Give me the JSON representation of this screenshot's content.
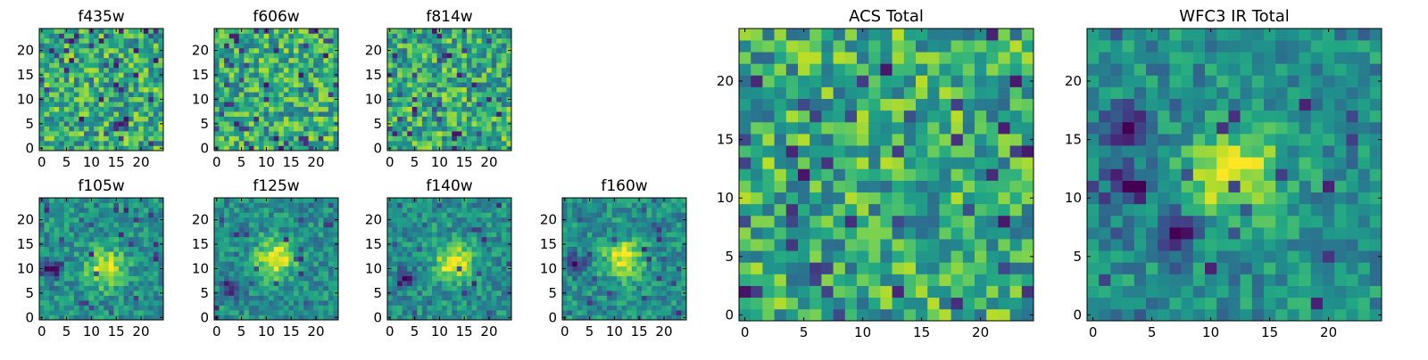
{
  "chart_data": [
    {
      "type": "heatmap",
      "title": "f435w",
      "xticks": [
        0,
        5,
        10,
        15,
        20
      ],
      "yticks": [
        0,
        5,
        10,
        15,
        20
      ],
      "grid_size": 25,
      "colormap": "viridis",
      "description_values": {
        "pattern": "noise",
        "peak": [],
        "dark": []
      }
    },
    {
      "type": "heatmap",
      "title": "f606w",
      "xticks": [
        0,
        5,
        10,
        15,
        20
      ],
      "yticks": [
        0,
        5,
        10,
        15,
        20
      ],
      "grid_size": 25,
      "colormap": "viridis",
      "description_values": {
        "pattern": "noise",
        "peak": [],
        "dark": []
      }
    },
    {
      "type": "heatmap",
      "title": "f814w",
      "xticks": [
        0,
        5,
        10,
        15,
        20
      ],
      "yticks": [
        0,
        5,
        10,
        15,
        20
      ],
      "grid_size": 25,
      "colormap": "viridis",
      "description_values": {
        "pattern": "noise",
        "peak": [],
        "dark": []
      }
    },
    {
      "type": "heatmap",
      "title": "f105w",
      "xticks": [
        0,
        5,
        10,
        15,
        20
      ],
      "yticks": [
        0,
        5,
        10,
        15,
        20
      ],
      "grid_size": 25,
      "colormap": "viridis",
      "description_values": {
        "pattern": "source",
        "peak": [
          13,
          10
        ],
        "dark": [
          [
            2,
            10
          ]
        ]
      }
    },
    {
      "type": "heatmap",
      "title": "f125w",
      "xticks": [
        0,
        5,
        10,
        15,
        20
      ],
      "yticks": [
        0,
        5,
        10,
        15,
        20
      ],
      "grid_size": 25,
      "colormap": "viridis",
      "description_values": {
        "pattern": "source",
        "peak": [
          12,
          12
        ],
        "dark": [
          [
            3,
            6
          ]
        ]
      }
    },
    {
      "type": "heatmap",
      "title": "f140w",
      "xticks": [
        0,
        5,
        10,
        15,
        20
      ],
      "yticks": [
        0,
        5,
        10,
        15,
        20
      ],
      "grid_size": 25,
      "colormap": "viridis",
      "description_values": {
        "pattern": "source",
        "peak": [
          13,
          11
        ],
        "dark": [
          [
            3,
            8
          ]
        ]
      }
    },
    {
      "type": "heatmap",
      "title": "f160w",
      "xticks": [
        0,
        5,
        10,
        15,
        20
      ],
      "yticks": [
        0,
        5,
        10,
        15,
        20
      ],
      "grid_size": 25,
      "colormap": "viridis",
      "description_values": {
        "pattern": "source",
        "peak": [
          12,
          12
        ],
        "dark": [
          [
            2,
            11
          ]
        ]
      }
    },
    {
      "type": "heatmap",
      "title": "ACS Total",
      "xticks": [
        0,
        5,
        10,
        15,
        20
      ],
      "yticks": [
        0,
        5,
        10,
        15,
        20
      ],
      "grid_size": 25,
      "colormap": "viridis",
      "description_values": {
        "pattern": "noise",
        "peak": [],
        "dark": []
      }
    },
    {
      "type": "heatmap",
      "title": "WFC3 IR Total",
      "xticks": [
        0,
        5,
        10,
        15,
        20
      ],
      "yticks": [
        0,
        5,
        10,
        15,
        20
      ],
      "grid_size": 25,
      "colormap": "viridis",
      "description_values": {
        "pattern": "source",
        "peak": [
          12,
          12
        ],
        "dark": [
          [
            3,
            11
          ],
          [
            7,
            7
          ],
          [
            3,
            16
          ]
        ]
      }
    }
  ]
}
